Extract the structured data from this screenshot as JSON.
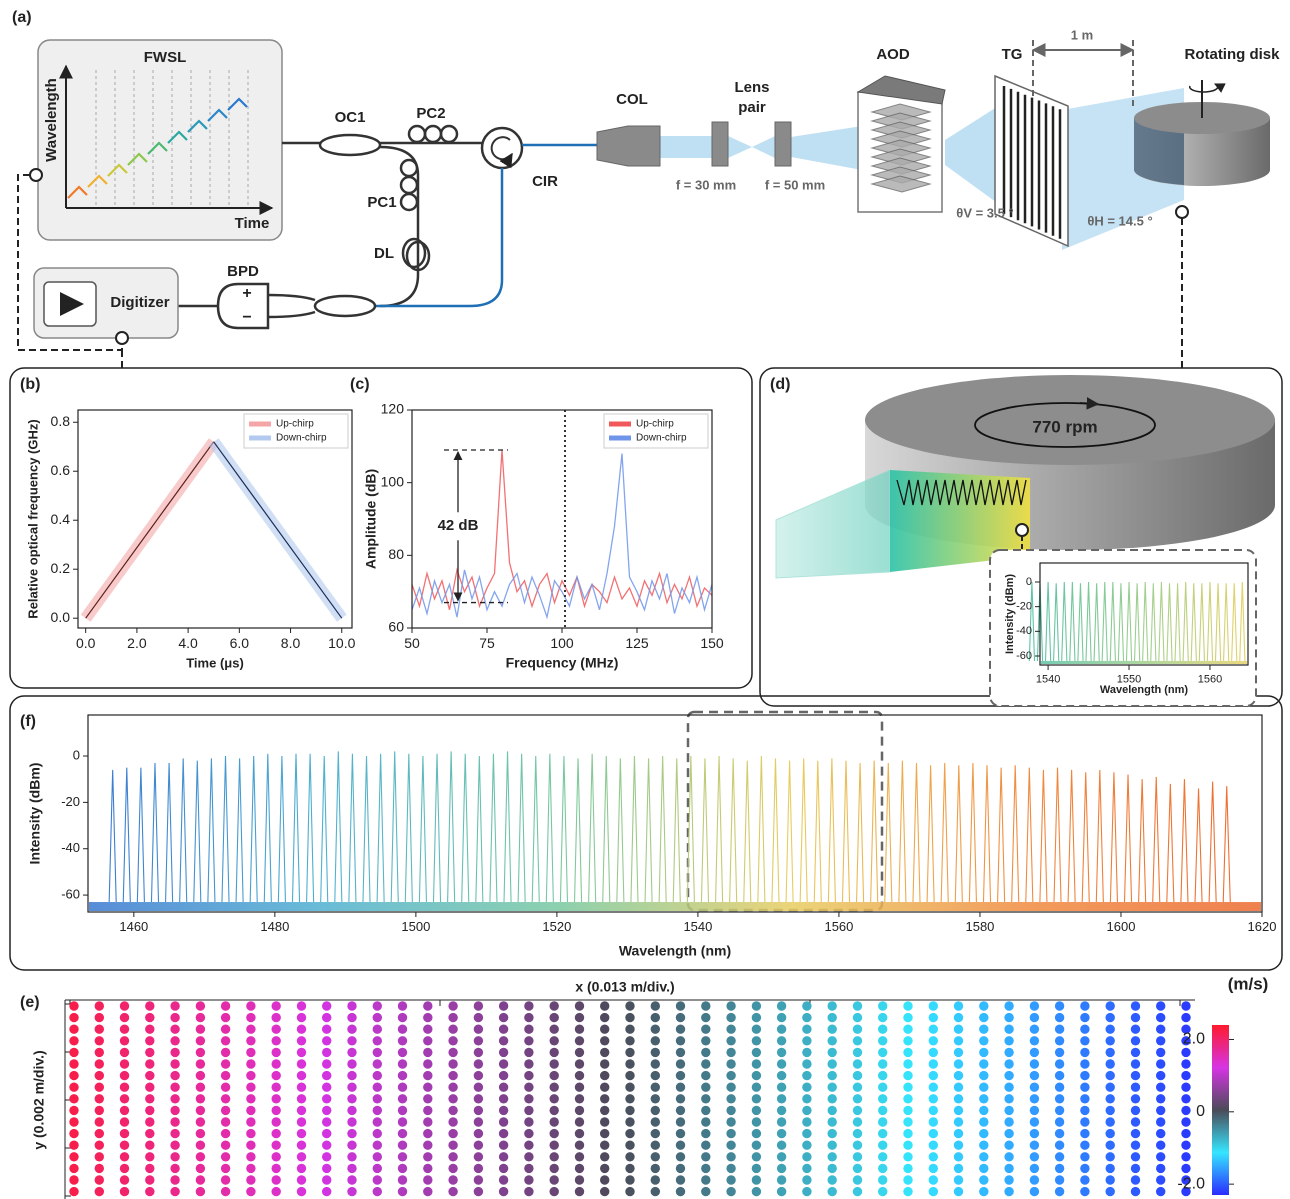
{
  "diagram": {
    "label": "(a)",
    "fwsl": "FWSL",
    "wavelength_axis": "Wavelength",
    "time_axis": "Time",
    "oc1": "OC1",
    "pc2": "PC2",
    "pc1": "PC1",
    "dl": "DL",
    "cir": "CIR",
    "col": "COL",
    "lens_pair": [
      "Lens",
      "pair"
    ],
    "focal_1": "f = 30 mm",
    "focal_2": "f = 50 mm",
    "aod": "AOD",
    "tg": "TG",
    "distance": "1 m",
    "rotating_disk": "Rotating disk",
    "theta_v": "θV = 3.5 °",
    "theta_h": "θH = 14.5 °",
    "bpd": "BPD",
    "plus": "+",
    "minus": "−",
    "digitizer": "Digitizer"
  },
  "panel_d": {
    "label": "(d)",
    "speed": "770 rpm"
  },
  "chart_data": [
    {
      "type": "line",
      "panel_label": "(b)",
      "xlabel": "Time (μs)",
      "ylabel": "Relative optical frequency (GHz)",
      "xlim": [
        -0.3,
        10.4
      ],
      "ylim": [
        -0.04,
        0.85
      ],
      "xticks": [
        {
          "value": 0,
          "label": "0.0"
        },
        {
          "value": 2,
          "label": "2.0"
        },
        {
          "value": 4,
          "label": "4.0"
        },
        {
          "value": 6,
          "label": "6.0"
        },
        {
          "value": 8,
          "label": "8.0"
        },
        {
          "value": 10,
          "label": "10.0"
        }
      ],
      "yticks": [
        {
          "value": 0,
          "label": "0.0"
        },
        0.2,
        0.4,
        0.6,
        0.8
      ],
      "legend": "upper right",
      "series": [
        {
          "name": "Up-chirp",
          "color": "#f4a6a6",
          "line_color": "#5a1e1e",
          "x": [
            0,
            5
          ],
          "values": [
            0,
            0.72
          ]
        },
        {
          "name": "Down-chirp",
          "color": "#b3c9ef",
          "line_color": "#1b2b58",
          "x": [
            5,
            10
          ],
          "values": [
            0.72,
            0
          ]
        }
      ]
    },
    {
      "type": "line",
      "panel_label": "(c)",
      "xlabel": "Frequency (MHz)",
      "ylabel": "Amplitude (dB)",
      "xlim": [
        50,
        150
      ],
      "ylim": [
        60,
        120
      ],
      "xticks": [
        50,
        75,
        100,
        125,
        150
      ],
      "yticks": [
        60,
        80,
        100,
        120
      ],
      "legend": "upper right",
      "vline": 101,
      "annotation": "42 dB",
      "annotation_levels": [
        67,
        109
      ],
      "x": [
        50,
        52.5,
        55,
        57.5,
        60,
        62.5,
        65,
        67.5,
        70,
        72.5,
        75,
        77.5,
        80,
        82.5,
        85,
        87.5,
        90,
        92.5,
        95,
        97.5,
        100,
        102.5,
        105,
        107.5,
        110,
        112.5,
        115,
        117.5,
        120,
        122.5,
        125,
        127.5,
        130,
        132.5,
        135,
        137.5,
        140,
        142.5,
        145,
        147.5,
        150
      ],
      "series": [
        {
          "name": "Up-chirp",
          "color": "#f0585a",
          "values": [
            72,
            66,
            75,
            68,
            73,
            65,
            76,
            70,
            74,
            66,
            71,
            75,
            109,
            78,
            70,
            73,
            66,
            72,
            75,
            67,
            73,
            69,
            74,
            66,
            72,
            70,
            67,
            74,
            68,
            71,
            66,
            73,
            69,
            75,
            67,
            72,
            68,
            74,
            66,
            71,
            69
          ]
        },
        {
          "name": "Down-chirp",
          "color": "#6f95ea",
          "values": [
            65,
            71,
            64,
            73,
            67,
            72,
            63,
            76,
            68,
            74,
            65,
            70,
            66,
            72,
            75,
            67,
            74,
            69,
            63,
            73,
            70,
            66,
            74,
            68,
            72,
            65,
            75,
            88,
            108,
            74,
            70,
            65,
            73,
            68,
            75,
            64,
            71,
            67,
            74,
            65,
            72
          ]
        }
      ]
    },
    {
      "type": "spectrum",
      "xlabel": "Wavelength (nm)",
      "ylabel": "Intensity (dBm)",
      "xlim": [
        1539,
        1564.7
      ],
      "ylim": [
        -67.3,
        15.4
      ],
      "xticks": [
        1540,
        1550,
        1560
      ],
      "yticks": [
        0,
        -20,
        -40,
        -60
      ],
      "noise_floor": -64,
      "colormap": [
        "#5fc3a5",
        "#9fd08e",
        "#e6d268"
      ],
      "x": [
        1538,
        1539,
        1540,
        1541,
        1542,
        1543,
        1544,
        1545,
        1546,
        1547,
        1548,
        1549,
        1550,
        1551,
        1552,
        1553,
        1554,
        1555,
        1556,
        1557,
        1558,
        1559,
        1560,
        1561,
        1562,
        1563,
        1564
      ],
      "values": [
        0,
        -1,
        0,
        -1,
        0,
        0,
        -1,
        0,
        -1,
        0,
        0,
        -1,
        0,
        -1,
        0,
        -1,
        0,
        -1,
        -1,
        0,
        -1,
        -1,
        0,
        -1,
        -1,
        -1,
        0
      ]
    },
    {
      "type": "spectrum",
      "panel_label": "(f)",
      "xlabel": "Wavelength (nm)",
      "ylabel": "Intensity (dBm)",
      "xlim": [
        1453.5,
        1620
      ],
      "ylim": [
        -67.3,
        17.7
      ],
      "xticks": [
        1460,
        1480,
        1500,
        1520,
        1540,
        1560,
        1580,
        1600,
        1620
      ],
      "yticks": [
        0,
        -20,
        -40,
        -60
      ],
      "noise_floor": -63,
      "colormap": [
        "#3a78d0",
        "#4fb0d0",
        "#78c8a0",
        "#e8cc60",
        "#f08a40",
        "#ec6a30"
      ],
      "x": [
        1457,
        1459,
        1461,
        1463,
        1465,
        1467,
        1469,
        1471,
        1473,
        1475,
        1477,
        1479,
        1481,
        1483,
        1485,
        1487,
        1489,
        1491,
        1493,
        1495,
        1497,
        1499,
        1501,
        1503,
        1505,
        1507,
        1509,
        1511,
        1513,
        1515,
        1517,
        1519,
        1521,
        1523,
        1525,
        1527,
        1529,
        1531,
        1533,
        1535,
        1537,
        1539,
        1541,
        1543,
        1545,
        1547,
        1549,
        1551,
        1553,
        1555,
        1557,
        1559,
        1561,
        1563,
        1565,
        1567,
        1569,
        1571,
        1573,
        1575,
        1577,
        1579,
        1581,
        1583,
        1585,
        1587,
        1589,
        1591,
        1593,
        1595,
        1597,
        1599,
        1601,
        1603,
        1605,
        1607,
        1609,
        1611,
        1613,
        1615
      ],
      "values": [
        -6,
        -5,
        -5,
        -3,
        -3,
        -1,
        -2,
        -1,
        0,
        -1,
        0,
        1,
        0,
        1,
        1,
        0,
        2,
        1,
        0,
        1,
        2,
        1,
        0,
        1,
        2,
        1,
        0,
        1,
        2,
        1,
        0,
        1,
        0,
        -1,
        1,
        0,
        -1,
        0,
        -1,
        0,
        -1,
        0,
        -1,
        0,
        -1,
        -2,
        0,
        -1,
        -2,
        -1,
        -2,
        -1,
        -2,
        -3,
        -2,
        -3,
        -2,
        -3,
        -4,
        -3,
        -4,
        -3,
        -4,
        -5,
        -4,
        -5,
        -6,
        -5,
        -6,
        -7,
        -6,
        -7,
        -8,
        -10,
        -9,
        -12,
        -10,
        -14,
        -11,
        -13
      ]
    },
    {
      "type": "dot_grid",
      "panel_label": "(e)",
      "xlabel": "x (0.013 m/div.)",
      "ylabel": "y (0.002 m/div.)",
      "colorbar_label": "(m/s)",
      "clim": [
        -2.3,
        2.4
      ],
      "cticks": [
        {
          "value": 2,
          "label": "2.0"
        },
        0,
        {
          "value": -2,
          "label": "-2.0"
        }
      ],
      "colormap": [
        "#2a2cff",
        "#35e6ff",
        "#4b4b58",
        "#d634e4",
        "#ff1a2c"
      ],
      "values": [
        2.2,
        2.1,
        2.0,
        1.9,
        1.8,
        1.7,
        1.6,
        1.5,
        1.4,
        1.3,
        1.2,
        1.1,
        1.0,
        0.9,
        0.8,
        0.7,
        0.6,
        0.5,
        0.4,
        0.3,
        0.2,
        0.1,
        0,
        -0.1,
        -0.2,
        -0.3,
        -0.4,
        -0.5,
        -0.6,
        -0.7,
        -0.8,
        -0.9,
        -1.0,
        -1.1,
        -1.2,
        -1.3,
        -1.4,
        -1.5,
        -1.6,
        -1.7,
        -1.8,
        -1.9,
        -2.0,
        -2.1,
        -2.2
      ]
    }
  ]
}
